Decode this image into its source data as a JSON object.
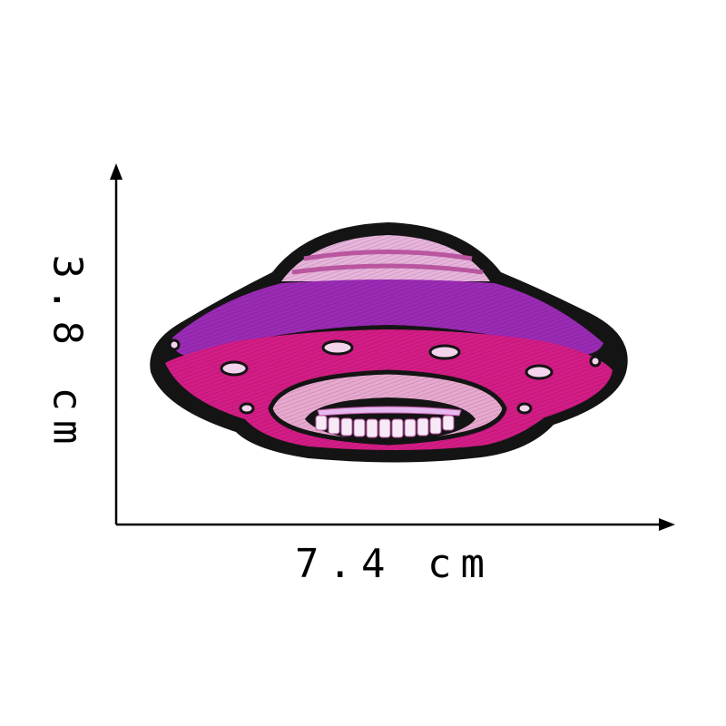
{
  "dimensions": {
    "width_label": "7.4 cm",
    "height_label": "3.8 cm"
  },
  "colors": {
    "outline": "#141414",
    "dome": "#e8b4dc",
    "rim_band": "#9b2bb5",
    "body": "#d41c86",
    "mouth_plate": "#e8a8cf",
    "teeth": "#f7eaf7"
  },
  "subject": "embroidered-ufo-patch"
}
